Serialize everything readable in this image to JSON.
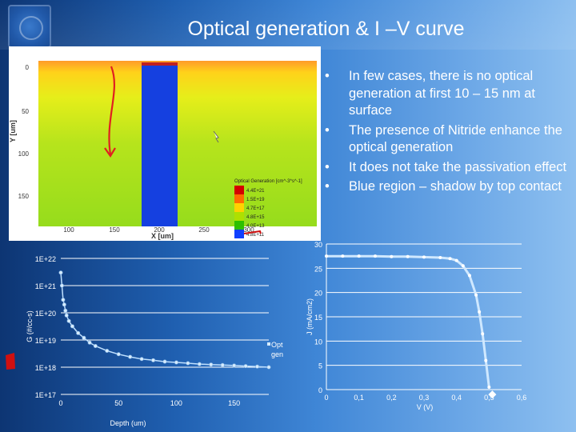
{
  "slide": {
    "title": "Optical generation & I –V curve",
    "bullets": [
      "In few cases, there is no optical generation at first 10 – 15 nm at surface",
      "The presence of Nitride enhance the optical generation",
      "It does not take the passivation effect",
      "Blue region – shadow by top contact"
    ]
  },
  "simulation": {
    "y_axis_label": "Y [um]",
    "x_axis_label": "X [um]",
    "y_ticks": [
      "0",
      "50",
      "100",
      "150"
    ],
    "x_ticks": [
      "100",
      "150",
      "200",
      "250",
      "300"
    ],
    "legend_title": "Optical Generation [cm^-3*s^-1]",
    "legend_entries": [
      "4.4E+21",
      "1.5E+19",
      "4.7E+17",
      "4.8E+15",
      "4.0E+13",
      "4.8E+11"
    ],
    "legend_colors": [
      "#d40000",
      "#ff6a00",
      "#ffd200",
      "#aee000",
      "#2ec000",
      "#1040ff"
    ],
    "contact_color": "#1540e0"
  },
  "chart_data": [
    {
      "type": "scatter",
      "xlabel": "Depth (um)",
      "ylabel": "G (#/cc-s)",
      "y_scale": "log",
      "ylim": [
        1e+17,
        1e+22
      ],
      "xlim": [
        0,
        180
      ],
      "x_ticks": [
        "0",
        "50",
        "100",
        "150"
      ],
      "y_ticks": [
        "1E+17",
        "1E+18",
        "1E+19",
        "1E+20",
        "1E+21",
        "1E+22"
      ],
      "legend": "Opt gen",
      "series": [
        {
          "name": "Opt gen",
          "x": [
            0,
            1,
            2,
            3,
            4,
            5,
            7,
            10,
            15,
            20,
            25,
            30,
            40,
            50,
            60,
            70,
            80,
            90,
            100,
            110,
            120,
            130,
            140,
            150,
            160,
            170,
            180
          ],
          "y": [
            3e+21,
            1e+21,
            3e+20,
            2e+20,
            1.2e+20,
            8e+19,
            5e+19,
            3.2e+19,
            1.8e+19,
            1.2e+19,
            8e+18,
            6e+18,
            4e+18,
            3e+18,
            2.4e+18,
            2e+18,
            1.8e+18,
            1.6e+18,
            1.5e+18,
            1.4e+18,
            1.3e+18,
            1.25e+18,
            1.2e+18,
            1.15e+18,
            1.1e+18,
            1.05e+18,
            1e+18
          ]
        }
      ]
    },
    {
      "type": "line",
      "xlabel": "V (V)",
      "ylabel": "J (mA/cm2)",
      "xlim": [
        0,
        0.6
      ],
      "ylim": [
        0,
        30
      ],
      "x_ticks": [
        "0",
        "0,1",
        "0,2",
        "0,3",
        "0,4",
        "0,5",
        "0,6"
      ],
      "y_ticks": [
        "0",
        "5",
        "10",
        "15",
        "20",
        "25",
        "30"
      ],
      "series": [
        {
          "name": "",
          "x": [
            0,
            0.05,
            0.1,
            0.15,
            0.2,
            0.25,
            0.3,
            0.35,
            0.38,
            0.4,
            0.42,
            0.44,
            0.46,
            0.47,
            0.48,
            0.49,
            0.5
          ],
          "y": [
            27.5,
            27.5,
            27.5,
            27.5,
            27.4,
            27.4,
            27.3,
            27.2,
            27.0,
            26.6,
            25.5,
            23.5,
            19.5,
            16.0,
            11.5,
            6.0,
            0.5
          ]
        }
      ]
    }
  ]
}
